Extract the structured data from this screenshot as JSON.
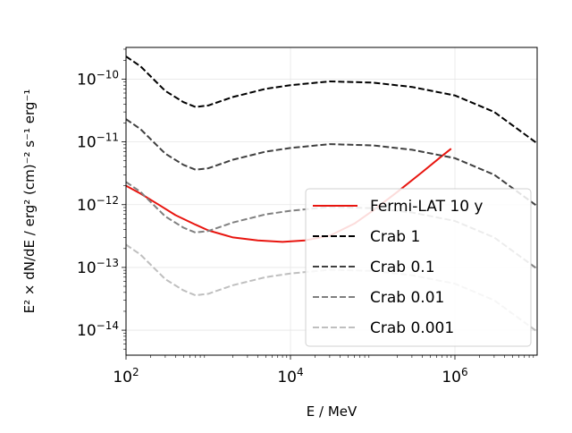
{
  "chart_data": {
    "type": "line",
    "xlabel": "E / MeV",
    "ylabel": "E² × dN/dE / erg² (cm)⁻² s⁻¹ erg⁻¹",
    "x_scale": "log",
    "y_scale": "log",
    "xlim": [
      100,
      10000000
    ],
    "ylim": [
      4e-15,
      3.2e-10
    ],
    "grid": true,
    "legend_position": "lower-right",
    "x_ticks": [
      {
        "value": 100,
        "base": "10",
        "exp": "2"
      },
      {
        "value": 10000,
        "base": "10",
        "exp": "4"
      },
      {
        "value": 1000000,
        "base": "10",
        "exp": "6"
      }
    ],
    "y_ticks": [
      {
        "value": 1e-14,
        "base": "10",
        "exp": "−14"
      },
      {
        "value": 1e-13,
        "base": "10",
        "exp": "−13"
      },
      {
        "value": 1e-12,
        "base": "10",
        "exp": "−12"
      },
      {
        "value": 1e-11,
        "base": "10",
        "exp": "−11"
      },
      {
        "value": 1e-10,
        "base": "10",
        "exp": "−10"
      }
    ],
    "series": [
      {
        "name": "Fermi-LAT 10 y",
        "color": "#e8150f",
        "dash": "solid",
        "x": [
          100,
          150,
          250,
          400,
          700,
          1000,
          2000,
          4000,
          8000,
          15000,
          30000,
          60000,
          100000,
          200000,
          400000,
          700000,
          900000
        ],
        "y": [
          2e-12,
          1.5e-12,
          1e-12,
          6.8e-13,
          4.8e-13,
          3.9e-13,
          3e-13,
          2.7e-13,
          2.55e-13,
          2.7e-13,
          3.2e-13,
          5e-13,
          8e-13,
          1.6e-12,
          3.3e-12,
          6e-12,
          7.8e-12
        ]
      },
      {
        "name": "Crab 1",
        "color": "#000000",
        "dash": "dashed",
        "x": [
          100,
          150,
          200,
          300,
          500,
          700,
          1000,
          2000,
          5000,
          10000,
          30000,
          100000,
          300000,
          1000000,
          3000000,
          10000000
        ],
        "y": [
          2.3e-10,
          1.6e-10,
          1.1e-10,
          6.5e-11,
          4.3e-11,
          3.6e-11,
          3.8e-11,
          5.2e-11,
          7e-11,
          8e-11,
          9.2e-11,
          8.8e-11,
          7.5e-11,
          5.5e-11,
          3e-11,
          9.5e-12
        ]
      },
      {
        "name": "Crab 0.1",
        "color": "#404040",
        "dash": "dashed",
        "x": [
          100,
          150,
          200,
          300,
          500,
          700,
          1000,
          2000,
          5000,
          10000,
          30000,
          100000,
          300000,
          1000000,
          3000000,
          10000000
        ],
        "y": [
          2.3e-11,
          1.6e-11,
          1.1e-11,
          6.5e-12,
          4.3e-12,
          3.6e-12,
          3.8e-12,
          5.2e-12,
          7e-12,
          8e-12,
          9.2e-12,
          8.8e-12,
          7.5e-12,
          5.5e-12,
          3e-12,
          9.5e-13
        ]
      },
      {
        "name": "Crab 0.01",
        "color": "#808080",
        "dash": "dashed",
        "x": [
          100,
          150,
          200,
          300,
          500,
          700,
          1000,
          2000,
          5000,
          10000,
          30000,
          100000,
          300000,
          1000000,
          3000000,
          10000000
        ],
        "y": [
          2.3e-12,
          1.6e-12,
          1.1e-12,
          6.5e-13,
          4.3e-13,
          3.6e-13,
          3.8e-13,
          5.2e-13,
          7e-13,
          8e-13,
          9.2e-13,
          8.8e-13,
          7.5e-13,
          5.5e-13,
          3e-13,
          9.5e-14
        ]
      },
      {
        "name": "Crab 0.001",
        "color": "#bfbfbf",
        "dash": "dashed",
        "x": [
          100,
          150,
          200,
          300,
          500,
          700,
          1000,
          2000,
          5000,
          10000,
          30000,
          100000,
          300000,
          1000000,
          3000000,
          10000000
        ],
        "y": [
          2.3e-13,
          1.6e-13,
          1.1e-13,
          6.5e-14,
          4.3e-14,
          3.6e-14,
          3.8e-14,
          5.2e-14,
          7e-14,
          8e-14,
          9.2e-14,
          8.8e-14,
          7.5e-14,
          5.5e-14,
          3e-14,
          9.5e-15
        ]
      }
    ]
  }
}
